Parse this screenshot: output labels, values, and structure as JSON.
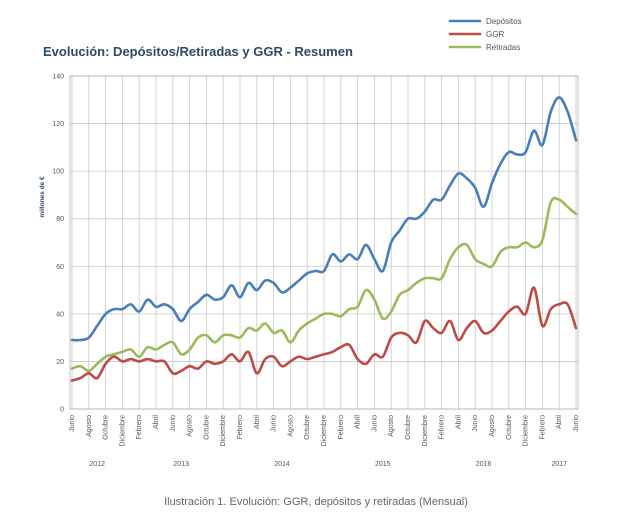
{
  "chart_data": {
    "type": "line",
    "title": "Evolución: Depósitos/Retiradas y GGR - Resumen",
    "ylabel": "millones de €",
    "ylim": [
      0,
      140
    ],
    "yticks": [
      0,
      20,
      40,
      60,
      80,
      100,
      120,
      140
    ],
    "grid": true,
    "legend_position": "top-right",
    "x_tick_labels": [
      "Junio",
      "Agosto",
      "Octubre",
      "Diciembre",
      "Febrero",
      "Abril",
      "Junio",
      "Agosto",
      "Octubre",
      "Diciembre",
      "Febrero",
      "Abril",
      "Junio",
      "Agosto",
      "Octubre",
      "Diciembre",
      "Febrero",
      "Abril",
      "Junio",
      "Agosto",
      "Octubre",
      "Diciembre",
      "Febrero",
      "Abril",
      "Junio",
      "Agosto",
      "Octubre",
      "Diciembre",
      "Febrero",
      "Abril",
      "Junio"
    ],
    "year_labels": [
      "2012",
      "2013",
      "2014",
      "2015",
      "2016",
      "2017"
    ],
    "year_label_month_index": [
      3,
      13,
      25,
      37,
      49,
      58
    ],
    "x": [
      "2012-06",
      "2012-07",
      "2012-08",
      "2012-09",
      "2012-10",
      "2012-11",
      "2012-12",
      "2013-01",
      "2013-02",
      "2013-03",
      "2013-04",
      "2013-05",
      "2013-06",
      "2013-07",
      "2013-08",
      "2013-09",
      "2013-10",
      "2013-11",
      "2013-12",
      "2014-01",
      "2014-02",
      "2014-03",
      "2014-04",
      "2014-05",
      "2014-06",
      "2014-07",
      "2014-08",
      "2014-09",
      "2014-10",
      "2014-11",
      "2014-12",
      "2015-01",
      "2015-02",
      "2015-03",
      "2015-04",
      "2015-05",
      "2015-06",
      "2015-07",
      "2015-08",
      "2015-09",
      "2015-10",
      "2015-11",
      "2015-12",
      "2016-01",
      "2016-02",
      "2016-03",
      "2016-04",
      "2016-05",
      "2016-06",
      "2016-07",
      "2016-08",
      "2016-09",
      "2016-10",
      "2016-11",
      "2016-12",
      "2017-01",
      "2017-02",
      "2017-03",
      "2017-04",
      "2017-05",
      "2017-06"
    ],
    "series": [
      {
        "name": "Depósitos",
        "color": "#4a7ebb",
        "values": [
          29,
          29,
          30,
          35,
          40,
          42,
          42,
          44,
          41,
          46,
          43,
          44,
          42,
          37,
          42,
          45,
          48,
          46,
          47,
          52,
          47,
          53,
          50,
          54,
          53,
          49,
          51,
          54,
          57,
          58,
          58,
          65,
          62,
          65,
          63,
          69,
          63,
          58,
          70,
          75,
          80,
          80,
          83,
          88,
          88,
          94,
          99,
          97,
          93,
          85,
          95,
          103,
          108,
          107,
          108,
          117,
          111,
          125,
          131,
          125,
          113
        ]
      },
      {
        "name": "GGR",
        "color": "#be4b48",
        "values": [
          12,
          13,
          15,
          13,
          19,
          22,
          20,
          21,
          20,
          21,
          20,
          20,
          15,
          16,
          18,
          17,
          20,
          19,
          20,
          23,
          20,
          24,
          15,
          21,
          22,
          18,
          20,
          22,
          21,
          22,
          23,
          24,
          26,
          27,
          21,
          19,
          23,
          22,
          30,
          32,
          31,
          28,
          37,
          34,
          32,
          37,
          29,
          34,
          37,
          32,
          33,
          37,
          41,
          43,
          40,
          51,
          35,
          42,
          44,
          44,
          34
        ]
      },
      {
        "name": "Retiradas",
        "color": "#9bbb59",
        "values": [
          17,
          18,
          16,
          19,
          22,
          23,
          24,
          25,
          22,
          26,
          25,
          27,
          28,
          23,
          25,
          30,
          31,
          28,
          31,
          31,
          30,
          34,
          33,
          36,
          32,
          33,
          28,
          33,
          36,
          38,
          40,
          40,
          39,
          42,
          43,
          50,
          46,
          38,
          41,
          48,
          50,
          53,
          55,
          55,
          55,
          63,
          68,
          69,
          63,
          61,
          60,
          66,
          68,
          68,
          70,
          68,
          71,
          87,
          88,
          85,
          82
        ]
      }
    ]
  },
  "caption": "Ilustración 1. Evolución: GGR, depósitos y retiradas (Mensual)"
}
